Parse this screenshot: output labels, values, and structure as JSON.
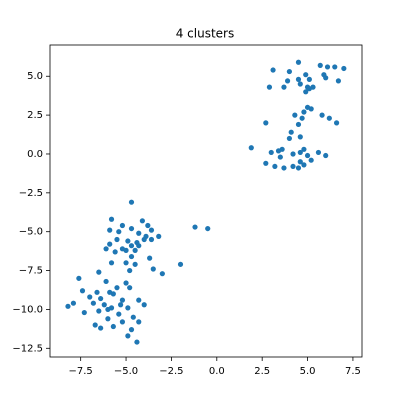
{
  "chart_data": {
    "type": "scatter",
    "title": "4 clusters",
    "color": "#1f77b4",
    "x": [
      4.5,
      3.1,
      4.0,
      4.9,
      5.1,
      5.7,
      6.1,
      6.5,
      7.0,
      5.9,
      6.0,
      6.7,
      3.9,
      4.6,
      5.0,
      5.3,
      2.9,
      3.7,
      5.1,
      4.9,
      4.5,
      4.8,
      5.0,
      5.2,
      4.3,
      4.7,
      5.8,
      6.2,
      6.6,
      2.7,
      4.5,
      4.1,
      4.6,
      4.0,
      1.9,
      3.0,
      3.4,
      3.6,
      3.5,
      4.2,
      4.8,
      4.6,
      5.0,
      5.6,
      6.0,
      2.7,
      3.2,
      3.7,
      4.2,
      4.5,
      4.8,
      4.6,
      5.2,
      -4.7,
      -5.8,
      -4.1,
      -5.2,
      -4.7,
      -3.8,
      -3.6,
      -5.9,
      -4.3,
      -3.9,
      -3.2,
      -5.5,
      -4.9,
      -4.4,
      -4.0,
      -3.6,
      -4.7,
      -5.9,
      -5.2,
      -5.6,
      -5.0,
      -6.1,
      -4.5,
      -4.7,
      -3.7,
      -5.8,
      -5.0,
      -4.5,
      -3.5,
      -3.0,
      -4.8,
      -6.5,
      -1.2,
      -0.5,
      -2.0,
      -4.3,
      -5.4,
      -7.6,
      -6.1,
      -7.4,
      -5.0,
      -6.6,
      -5.9,
      -8.2,
      -7.9,
      -7.0,
      -6.8,
      -6.4,
      -6.2,
      -5.7,
      -5.2,
      -5.5,
      -4.8,
      -4.3,
      -4.0,
      -5.8,
      -6.5,
      -7.3,
      -4.9,
      -5.4,
      -4.6,
      -6.0,
      -5.2,
      -4.3,
      -6.7,
      -6.4,
      -5.7,
      -4.7,
      -4.9,
      -4.4,
      -6.0,
      -5.3
    ],
    "values": [
      5.9,
      5.4,
      5.3,
      5.1,
      4.8,
      5.7,
      5.6,
      5.6,
      5.5,
      5.1,
      4.9,
      4.7,
      4.7,
      4.5,
      4.3,
      4.3,
      4.3,
      4.3,
      4.2,
      4.0,
      4.8,
      2.7,
      3.0,
      2.9,
      2.5,
      2.3,
      2.5,
      2.3,
      2.0,
      2.0,
      1.9,
      1.4,
      1.1,
      1.0,
      0.4,
      0.1,
      0.2,
      0.3,
      -0.2,
      0.0,
      0.3,
      0.1,
      -0.1,
      0.1,
      -0.1,
      -0.6,
      -0.8,
      -0.9,
      -0.8,
      -0.9,
      -0.7,
      -0.5,
      -0.4,
      -3.1,
      -4.2,
      -4.3,
      -4.6,
      -4.8,
      -4.6,
      -4.9,
      -4.9,
      -5.1,
      -5.3,
      -5.3,
      -5.5,
      -5.6,
      -5.7,
      -5.5,
      -5.5,
      -5.9,
      -5.8,
      -6.1,
      -6.3,
      -6.2,
      -6.1,
      -6.2,
      -6.6,
      -6.7,
      -7.0,
      -7.0,
      -7.1,
      -7.4,
      -7.7,
      -7.5,
      -7.6,
      -4.7,
      -4.8,
      -7.1,
      -5.9,
      -5.0,
      -8.0,
      -8.2,
      -8.8,
      -8.3,
      -8.9,
      -8.9,
      -9.8,
      -9.6,
      -9.2,
      -9.6,
      -9.3,
      -9.7,
      -9.0,
      -9.4,
      -8.6,
      -8.6,
      -9.4,
      -9.7,
      -9.9,
      -10.1,
      -10.2,
      -9.9,
      -10.3,
      -10.5,
      -10.6,
      -10.8,
      -10.8,
      -11.0,
      -11.2,
      -11.1,
      -11.3,
      -11.7,
      -12.1,
      -10.0,
      -9.7
    ],
    "xlim": [
      -9.19,
      8.0
    ],
    "ylim": [
      -13.06,
      7.01
    ],
    "xticks": [
      {
        "value": -7.5,
        "label": "−7.5"
      },
      {
        "value": -5.0,
        "label": "−5.0"
      },
      {
        "value": -2.5,
        "label": "−2.5"
      },
      {
        "value": 0,
        "label": "0.0"
      },
      {
        "value": 2.5,
        "label": "2.5"
      },
      {
        "value": 5.0,
        "label": "5.0"
      },
      {
        "value": 7.5,
        "label": "7.5"
      }
    ],
    "yticks": [
      {
        "value": 5.0,
        "label": "5.0"
      },
      {
        "value": 2.5,
        "label": "2.5"
      },
      {
        "value": 0,
        "label": "0.0"
      },
      {
        "value": -2.5,
        "label": "−2.5"
      },
      {
        "value": -5.0,
        "label": "−5.0"
      },
      {
        "value": -7.5,
        "label": "−7.5"
      },
      {
        "value": -10.0,
        "label": "−10.0"
      },
      {
        "value": -12.5,
        "label": "−12.5"
      }
    ],
    "grid": false
  }
}
